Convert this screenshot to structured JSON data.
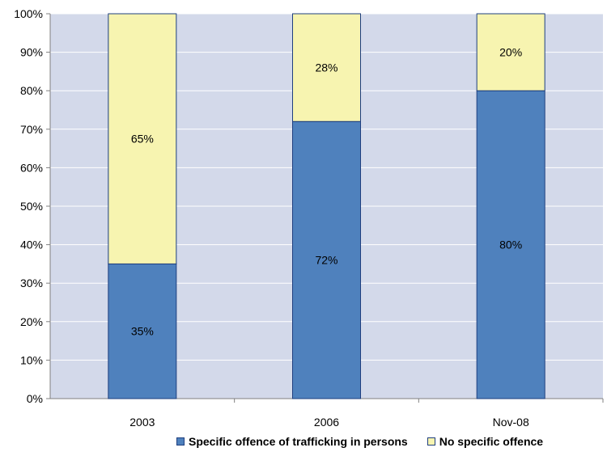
{
  "chart_data": {
    "type": "bar",
    "stacked": true,
    "categories": [
      "2003",
      "2006",
      "Nov-08"
    ],
    "series": [
      {
        "name": "Specific offence of trafficking in persons",
        "values": [
          35,
          72,
          80
        ],
        "labels": [
          "35%",
          "72%",
          "80%"
        ],
        "color": "#4f81bd"
      },
      {
        "name": "No specific offence",
        "values": [
          65,
          28,
          20
        ],
        "labels": [
          "65%",
          "28%",
          "20%"
        ],
        "color": "#f7f4b0"
      }
    ],
    "ylim": [
      0,
      100
    ],
    "yticks": [
      "0%",
      "10%",
      "20%",
      "30%",
      "40%",
      "50%",
      "60%",
      "70%",
      "80%",
      "90%",
      "100%"
    ],
    "grid": true,
    "legend_position": "bottom",
    "plot_background": "#d3d9ea",
    "bar_border_color": "#1f3f7f"
  }
}
